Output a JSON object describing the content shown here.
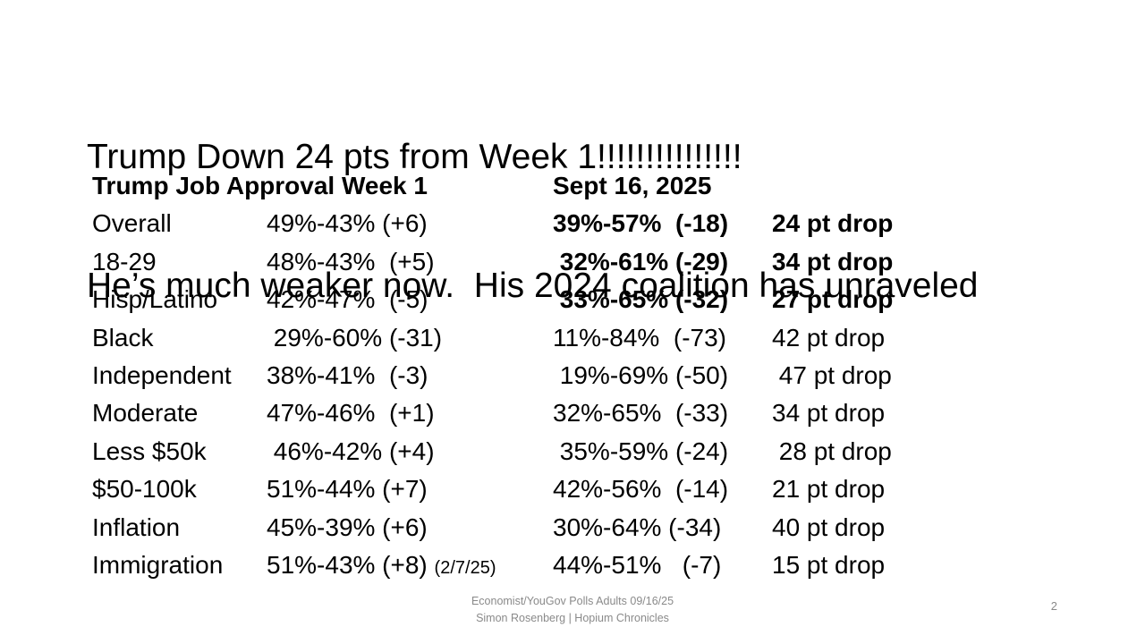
{
  "slide": {
    "title_line1": "Trump Down 24 pts from Week 1!!!!!!!!!!!!!!!",
    "title_line2": "He’s much weaker now.  His 2024 coalition has unraveled",
    "page_number": "2"
  },
  "footer": {
    "line1": "Economist/YouGov Polls Adults 09/16/25",
    "line2": "Simon Rosenberg | Hopium Chronicles"
  },
  "table": {
    "header": {
      "col1": "Trump Job Approval Week 1",
      "col2": "Sept 16, 2025"
    },
    "rows": [
      {
        "label": "Overall",
        "week1": "49%-43% (+6)",
        "note": "",
        "sept": "39%-57%  (-18)",
        "drop": "24 pt drop",
        "emphasized": true
      },
      {
        "label": "18-29",
        "week1": "48%-43%  (+5)",
        "note": "",
        "sept": " 32%-61% (-29)",
        "drop": "34 pt drop",
        "emphasized": true
      },
      {
        "label": "Hisp/Latino",
        "week1": "42%-47%  (-5)",
        "note": "",
        "sept": " 33%-65% (-32)",
        "drop": "27 pt drop",
        "emphasized": true
      },
      {
        "label": "Black",
        "week1": " 29%-60% (-31)",
        "note": "",
        "sept": "11%-84%  (-73)",
        "drop": "42 pt drop",
        "emphasized": false
      },
      {
        "label": "Independent",
        "week1": "38%-41%  (-3)",
        "note": "",
        "sept": " 19%-69% (-50)",
        "drop": " 47 pt drop",
        "emphasized": false
      },
      {
        "label": "Moderate",
        "week1": "47%-46%  (+1)",
        "note": "",
        "sept": "32%-65%  (-33)",
        "drop": "34 pt drop",
        "emphasized": false
      },
      {
        "label": "Less $50k",
        "week1": " 46%-42% (+4)",
        "note": "",
        "sept": " 35%-59% (-24)",
        "drop": " 28 pt drop",
        "emphasized": false
      },
      {
        "label": "$50-100k",
        "week1": "51%-44% (+7)",
        "note": "",
        "sept": "42%-56%  (-14)",
        "drop": "21 pt drop",
        "emphasized": false
      },
      {
        "label": "Inflation",
        "week1": "45%-39% (+6)",
        "note": "",
        "sept": "30%-64% (-34)",
        "drop": "40 pt drop",
        "emphasized": false
      },
      {
        "label": "Immigration",
        "week1": "51%-43% (+8) ",
        "note": "(2/7/25)",
        "sept": "44%-51%   (-7)",
        "drop": "15 pt drop",
        "emphasized": false
      }
    ]
  },
  "colors": {
    "text": "#000000",
    "muted": "#8a8a8a",
    "background": "#ffffff"
  }
}
